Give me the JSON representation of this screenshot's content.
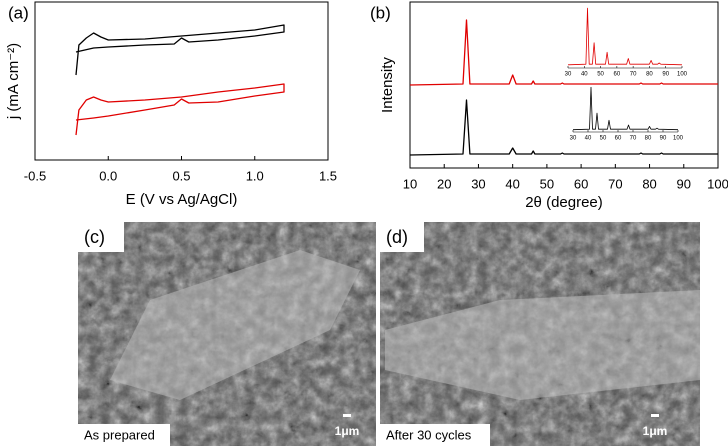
{
  "chart_data": [
    {
      "type": "line",
      "label": "(a)",
      "xlabel": "E (V vs Ag/AgCl)",
      "ylabel": "j (mA cm⁻²)",
      "xlim": [
        -0.5,
        1.5
      ],
      "xticks": [
        -0.5,
        {
          "value": 0,
          "label": "0.0"
        },
        0.5,
        {
          "value": 1,
          "label": "1.0"
        },
        1.5
      ],
      "ylim": [
        0,
        158
      ],
      "series": [
        {
          "color": "#000000",
          "x": [
            -0.22,
            -0.2,
            -0.15,
            -0.1,
            -0.05,
            0,
            0.25,
            0.5,
            0.75,
            1.0,
            1.2,
            1.2,
            1.0,
            0.75,
            0.55,
            0.5,
            0.45,
            0.25,
            0,
            -0.1,
            -0.22
          ],
          "values": [
            85,
            115,
            122,
            127,
            123,
            120,
            121,
            124,
            127,
            130,
            135,
            128,
            124,
            120,
            118,
            122,
            116,
            115,
            113,
            112,
            108
          ]
        },
        {
          "color": "#e00000",
          "x": [
            -0.22,
            -0.2,
            -0.15,
            -0.1,
            -0.05,
            0,
            0.25,
            0.5,
            0.75,
            1.0,
            1.2,
            1.2,
            1.0,
            0.75,
            0.55,
            0.5,
            0.45,
            0.25,
            0,
            -0.1,
            -0.22
          ],
          "values": [
            25,
            50,
            60,
            63,
            60,
            58,
            60,
            63,
            68,
            72,
            76,
            68,
            64,
            58,
            57,
            61,
            55,
            50,
            44,
            42,
            40
          ]
        }
      ]
    },
    {
      "type": "line",
      "label": "(b)",
      "xlabel": "2θ (degree)",
      "ylabel": "Intensity",
      "xlim": [
        10,
        100
      ],
      "xticks": [
        10,
        20,
        30,
        40,
        50,
        60,
        70,
        80,
        90,
        100
      ],
      "ylim": [
        0,
        166
      ],
      "series": [
        {
          "color": "#e00000",
          "x": [
            10,
            25.5,
            26.5,
            27.5,
            39,
            40,
            41,
            45.5,
            46,
            46.5,
            54,
            54.5,
            55,
            77,
            77.5,
            78,
            83,
            83.5,
            84,
            100
          ],
          "values": [
            83,
            84,
            148,
            84,
            84,
            93,
            84,
            84,
            87,
            84,
            84,
            85,
            84,
            84,
            85,
            84,
            84,
            85,
            84,
            84
          ]
        },
        {
          "color": "#000000",
          "x": [
            10,
            25.5,
            26.5,
            27.5,
            39,
            40,
            41,
            45.5,
            46,
            46.5,
            54,
            54.5,
            55,
            77,
            77.5,
            78,
            83,
            83.5,
            84,
            100
          ],
          "values": [
            13,
            14,
            68,
            14,
            14,
            20,
            14,
            14,
            17,
            14,
            14,
            15,
            14,
            14,
            15,
            14,
            14,
            15,
            14,
            14
          ]
        }
      ]
    },
    {
      "type": "line",
      "xlim": [
        30,
        100
      ],
      "xticks": [
        30,
        40,
        50,
        60,
        70,
        80,
        90,
        100
      ],
      "ylim": [
        0,
        100
      ],
      "series": [
        {
          "color": "#e00000",
          "x": [
            30,
            41,
            42,
            43,
            45,
            46,
            47,
            53,
            54,
            55,
            66,
            67,
            68,
            80,
            81,
            82,
            85,
            86,
            87,
            100
          ],
          "values": [
            5,
            6,
            95,
            6,
            6,
            40,
            6,
            6,
            25,
            6,
            6,
            15,
            6,
            6,
            12,
            6,
            6,
            8,
            6,
            5
          ]
        }
      ]
    },
    {
      "type": "line",
      "xlim": [
        30,
        100
      ],
      "xticks": [
        30,
        40,
        50,
        60,
        70,
        80,
        90,
        100
      ],
      "ylim": [
        0,
        100
      ],
      "series": [
        {
          "color": "#000000",
          "x": [
            30,
            41,
            42,
            43,
            45,
            46,
            47,
            53,
            54,
            55,
            66,
            67,
            68,
            80,
            81,
            82,
            85,
            86,
            87,
            100
          ],
          "values": [
            5,
            6,
            95,
            6,
            6,
            40,
            6,
            6,
            25,
            6,
            6,
            15,
            6,
            6,
            12,
            6,
            6,
            8,
            6,
            5
          ]
        }
      ]
    }
  ],
  "images": [
    {
      "label": "(c)",
      "caption": "As prepared",
      "scale": "1μm"
    },
    {
      "label": "(d)",
      "caption": "After 30 cycles",
      "scale": "1μm"
    }
  ]
}
